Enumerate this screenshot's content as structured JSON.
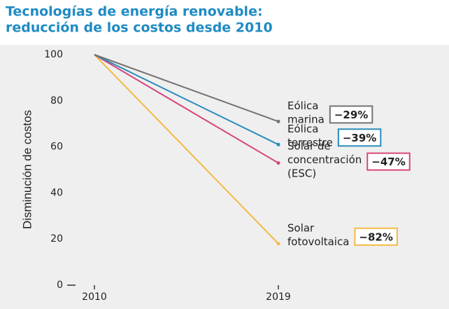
{
  "chart_data": {
    "type": "line",
    "title": [
      "Tecnologías de energía renovable:",
      "reducción de los costos desde 2010"
    ],
    "y_label": "Disminución de costos",
    "categories": [
      "2010",
      "2019"
    ],
    "ylim": [
      0,
      100
    ],
    "yticks": [
      0,
      20,
      40,
      60,
      80,
      100
    ],
    "series": [
      {
        "name": [
          "Eólica",
          "marina"
        ],
        "color": "#737373",
        "values": [
          100,
          71
        ],
        "change": -29,
        "change_label": "−29%"
      },
      {
        "name": [
          "Eólica",
          "terrestre"
        ],
        "color": "#2a8bbd",
        "values": [
          100,
          61
        ],
        "change": -39,
        "change_label": "−39%"
      },
      {
        "name": [
          "Solar de",
          "concentración",
          "(ESC)"
        ],
        "color": "#d6457c",
        "values": [
          100,
          53
        ],
        "change": -47,
        "change_label": "−47%"
      },
      {
        "name": [
          "Solar",
          "fotovoltaica"
        ],
        "color": "#f4b944",
        "values": [
          100,
          18
        ],
        "change": -82,
        "change_label": "−82%"
      }
    ]
  }
}
